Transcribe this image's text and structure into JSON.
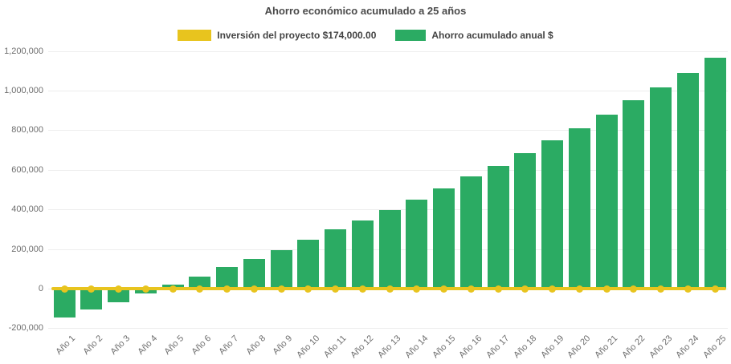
{
  "chart_data": {
    "type": "bar",
    "title": "Ahorro económico acumulado a 25 años",
    "categories": [
      "Año 1",
      "Año 2",
      "Año 3",
      "Año 4",
      "Año 5",
      "Año 6",
      "Año 7",
      "Año 8",
      "Año 9",
      "Año 10",
      "Año 11",
      "Año 12",
      "Año 13",
      "Año 14",
      "Año 15",
      "Año 16",
      "Año 17",
      "Año 18",
      "Año 19",
      "Año 20",
      "Año 21",
      "Año 22",
      "Año 23",
      "Año 24",
      "Año 25"
    ],
    "series": [
      {
        "name": "Inversión del proyecto $174,000.00",
        "type": "line",
        "color": "#E8C41E",
        "marker": "circle",
        "constant_y": 0
      },
      {
        "name": "Ahorro acumulado anual $",
        "type": "bar",
        "color": "#2BAB63",
        "values": [
          -145000,
          -105000,
          -70000,
          -25000,
          20000,
          60000,
          110000,
          150000,
          195000,
          245000,
          300000,
          345000,
          395000,
          450000,
          505000,
          565000,
          620000,
          685000,
          750000,
          810000,
          880000,
          950000,
          1015000,
          1090000,
          1165000
        ]
      }
    ],
    "ylim": [
      -200000,
      1200000
    ],
    "ytick_step": 200000,
    "ytick_labels": [
      "1,200,000",
      "1,000,000",
      "800,000",
      "600,000",
      "400,000",
      "200,000",
      "0",
      "-200,000"
    ],
    "xtick_rotation_deg": 45,
    "legend_position": "top-center",
    "grid": "faint-horizontal",
    "colors": {
      "bar_green": "#2BAB63",
      "line_yellow": "#E8C41E",
      "title_text": "#4A4A4A",
      "axis_text": "#6E6E6E",
      "gridline": "#EDEDED",
      "background": "#FFFFFF"
    }
  }
}
